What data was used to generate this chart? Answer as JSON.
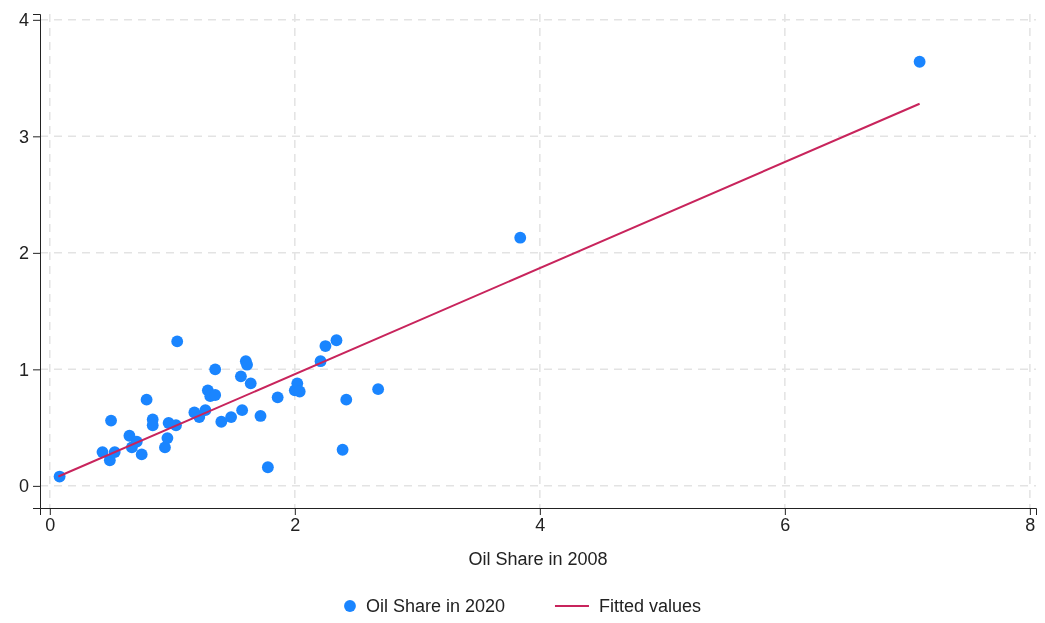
{
  "chart_data": {
    "type": "scatter",
    "xlabel": "Oil Share in 2008",
    "xlim": [
      -0.08,
      8.05
    ],
    "ylim": [
      -0.19,
      4.05
    ],
    "xticks": [
      0,
      2,
      4,
      6,
      8
    ],
    "yticks": [
      0,
      1,
      2,
      3,
      4
    ],
    "grid": true,
    "legend": "bottom",
    "series": [
      {
        "name": "Oil Share in 2020",
        "color": "#1a85ff",
        "marker": "circle",
        "x": [
          0.08,
          0.43,
          0.49,
          0.5,
          0.53,
          0.65,
          0.67,
          0.71,
          0.75,
          0.79,
          0.84,
          0.84,
          0.94,
          0.96,
          0.97,
          1.03,
          1.04,
          1.18,
          1.22,
          1.27,
          1.29,
          1.31,
          1.35,
          1.35,
          1.4,
          1.48,
          1.56,
          1.57,
          1.6,
          1.61,
          1.64,
          1.72,
          1.78,
          1.86,
          2.0,
          2.02,
          2.04,
          2.21,
          2.25,
          2.34,
          2.39,
          2.42,
          2.68,
          3.84,
          7.1
        ],
        "values": [
          0.08,
          0.29,
          0.22,
          0.56,
          0.29,
          0.43,
          0.33,
          0.38,
          0.27,
          0.74,
          0.57,
          0.52,
          0.33,
          0.41,
          0.54,
          0.52,
          1.24,
          0.63,
          0.59,
          0.65,
          0.82,
          0.77,
          0.78,
          1.0,
          0.55,
          0.59,
          0.94,
          0.65,
          1.07,
          1.04,
          0.88,
          0.6,
          0.16,
          0.76,
          0.82,
          0.88,
          0.81,
          1.07,
          1.2,
          1.25,
          0.31,
          0.74,
          0.83,
          2.13,
          3.64
        ]
      },
      {
        "name": "Fitted values",
        "color": "#c8245c",
        "type": "line",
        "marker": "none",
        "x": [
          0.07,
          7.1
        ],
        "values": [
          0.08,
          3.28
        ]
      }
    ]
  }
}
